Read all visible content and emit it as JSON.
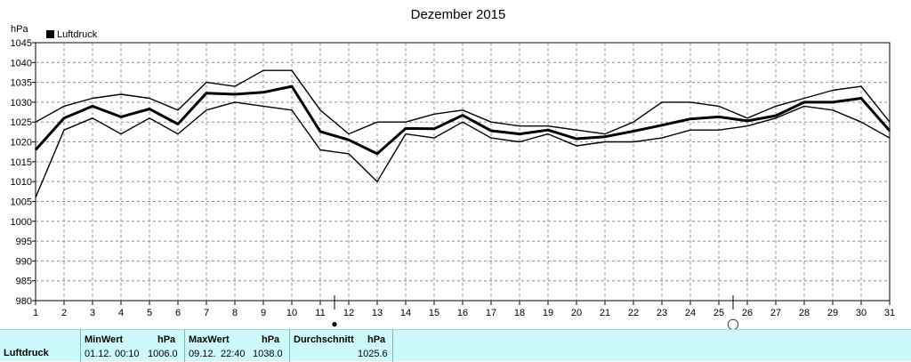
{
  "chart_data": {
    "type": "line",
    "title": "Dezember 2015",
    "ylabel": "hPa",
    "legend": "Luftdruck",
    "legend_placement": "top-left",
    "grid": true,
    "ylim": [
      980,
      1045
    ],
    "yticks": [
      980,
      985,
      990,
      995,
      1000,
      1005,
      1010,
      1015,
      1020,
      1025,
      1030,
      1035,
      1040,
      1045
    ],
    "x": [
      1,
      2,
      3,
      4,
      5,
      6,
      7,
      8,
      9,
      10,
      11,
      12,
      13,
      14,
      15,
      16,
      17,
      18,
      19,
      20,
      21,
      22,
      23,
      24,
      25,
      26,
      27,
      28,
      29,
      30,
      31
    ],
    "series": [
      {
        "name": "Luftdruck",
        "role": "average",
        "values": [
          1018.0,
          1026.0,
          1029.0,
          1026.3,
          1028.3,
          1024.5,
          1032.3,
          1032.0,
          1032.5,
          1034.0,
          1022.6,
          1020.5,
          1017.0,
          1023.4,
          1023.3,
          1026.7,
          1022.8,
          1022.0,
          1023.0,
          1020.8,
          1021.3,
          1022.7,
          1024.2,
          1025.8,
          1026.3,
          1025.3,
          1026.6,
          1030.0,
          1030.0,
          1031.0,
          1022.8
        ]
      },
      {
        "role": "max",
        "values": [
          1025.0,
          1029.0,
          1031.0,
          1032.0,
          1031.0,
          1028.0,
          1035.0,
          1034.0,
          1038.0,
          1038.0,
          1028.0,
          1022.0,
          1025.0,
          1025.0,
          1027.0,
          1028.0,
          1025.0,
          1024.0,
          1024.0,
          1023.0,
          1022.0,
          1025.0,
          1030.0,
          1030.0,
          1029.0,
          1026.0,
          1029.0,
          1031.0,
          1033.0,
          1034.0,
          1025.0
        ]
      },
      {
        "role": "min",
        "values": [
          1006.0,
          1023.0,
          1026.0,
          1022.0,
          1026.0,
          1022.0,
          1028.0,
          1030.0,
          1029.0,
          1028.0,
          1018.0,
          1017.0,
          1010.0,
          1022.0,
          1021.0,
          1025.0,
          1021.0,
          1020.0,
          1022.0,
          1019.0,
          1020.0,
          1020.0,
          1021.0,
          1023.0,
          1023.0,
          1024.0,
          1026.0,
          1029.0,
          1028.0,
          1025.0,
          1021.0
        ]
      }
    ],
    "markers": [
      {
        "symbol": "●",
        "name": "new-moon",
        "x": 11.5
      },
      {
        "symbol": "◯",
        "name": "full-moon",
        "x": 25.5
      }
    ]
  },
  "summary": {
    "label": "Luftdruck",
    "min": {
      "title": "MinWert",
      "unit": "hPa",
      "date": "01.12.",
      "time": "00:10",
      "value": "1006.0"
    },
    "max": {
      "title": "MaxWert",
      "unit": "hPa",
      "date": "09.12.",
      "time": "22:40",
      "value": "1038.0"
    },
    "avg": {
      "title": "Durchschnitt",
      "unit": "hPa",
      "value": "1025.6"
    }
  }
}
